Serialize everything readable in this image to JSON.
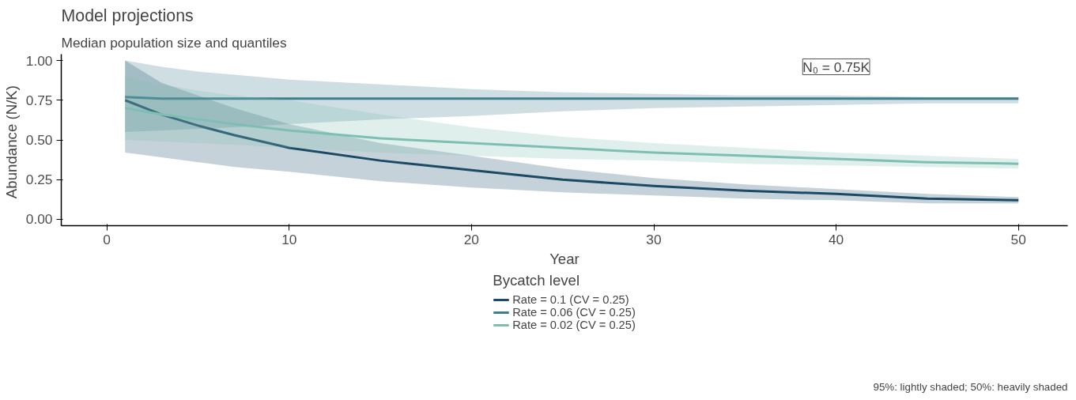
{
  "chart_data": {
    "type": "line",
    "title": "Model projections",
    "subtitle": "Median population size and quantiles",
    "xlabel": "Year",
    "ylabel": "Abundance  (N/K)",
    "legend_title": "Bycatch level",
    "x": [
      1,
      3,
      5,
      7,
      10,
      15,
      20,
      25,
      30,
      35,
      40,
      45,
      50
    ],
    "series": [
      {
        "name": "Rate = 0.1 (CV = 0.25)",
        "color": "#1b4a66",
        "values": [
          0.75,
          0.66,
          0.59,
          0.53,
          0.45,
          0.37,
          0.31,
          0.25,
          0.21,
          0.18,
          0.16,
          0.13,
          0.12
        ],
        "lower": [
          0.42,
          0.39,
          0.36,
          0.33,
          0.3,
          0.24,
          0.2,
          0.17,
          0.15,
          0.13,
          0.12,
          0.1,
          0.1
        ],
        "upper": [
          1.0,
          0.86,
          0.78,
          0.7,
          0.6,
          0.48,
          0.4,
          0.32,
          0.26,
          0.22,
          0.19,
          0.16,
          0.14
        ]
      },
      {
        "name": "Rate = 0.06 (CV = 0.25)",
        "color": "#3e7d8c",
        "values": [
          0.77,
          0.76,
          0.76,
          0.76,
          0.76,
          0.76,
          0.76,
          0.76,
          0.76,
          0.76,
          0.76,
          0.76,
          0.76
        ],
        "lower": [
          0.55,
          0.56,
          0.57,
          0.58,
          0.6,
          0.63,
          0.65,
          0.68,
          0.7,
          0.71,
          0.72,
          0.73,
          0.73
        ],
        "upper": [
          1.0,
          0.96,
          0.93,
          0.91,
          0.88,
          0.85,
          0.82,
          0.8,
          0.79,
          0.78,
          0.78,
          0.77,
          0.77
        ]
      },
      {
        "name": "Rate = 0.02 (CV = 0.25)",
        "color": "#7fbfb3",
        "values": [
          0.7,
          0.66,
          0.63,
          0.6,
          0.56,
          0.51,
          0.48,
          0.45,
          0.42,
          0.4,
          0.38,
          0.36,
          0.35
        ],
        "lower": [
          0.5,
          0.49,
          0.48,
          0.47,
          0.45,
          0.42,
          0.4,
          0.38,
          0.37,
          0.35,
          0.34,
          0.33,
          0.32
        ],
        "upper": [
          0.9,
          0.85,
          0.81,
          0.78,
          0.75,
          0.66,
          0.58,
          0.52,
          0.48,
          0.45,
          0.42,
          0.4,
          0.38
        ]
      }
    ],
    "xlim": [
      -2.5,
      52.7
    ],
    "ylim": [
      -0.04,
      1.04
    ],
    "xticks": [
      0,
      10,
      20,
      30,
      40,
      50
    ],
    "yticks": [
      {
        "value": 0,
        "label": "0.00"
      },
      {
        "value": 0.25,
        "label": "0.25"
      },
      {
        "value": 0.5,
        "label": "0.50"
      },
      {
        "value": 0.75,
        "label": "0.75"
      },
      {
        "value": 1,
        "label": "1.00"
      }
    ],
    "grid": false,
    "legend": "bottom",
    "line_style": "solid",
    "annotations": [
      "N₀ = 0.75K",
      "95%: lightly shaded; 50%: heavily shaded"
    ]
  }
}
